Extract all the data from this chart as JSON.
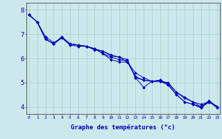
{
  "xlabel": "Graphe des températures (°c)",
  "background_color": "#cce8ec",
  "grid_color": "#aacccc",
  "line_color": "#0000bb",
  "x_ticks": [
    0,
    1,
    2,
    3,
    4,
    5,
    6,
    7,
    8,
    9,
    10,
    11,
    12,
    13,
    14,
    15,
    16,
    17,
    18,
    19,
    20,
    21,
    22,
    23
  ],
  "ylim": [
    3.7,
    8.3
  ],
  "xlim": [
    -0.3,
    23.3
  ],
  "yticks": [
    4,
    5,
    6,
    7,
    8
  ],
  "series": [
    [
      7.8,
      7.5,
      6.8,
      6.6,
      6.85,
      6.6,
      6.55,
      6.5,
      6.4,
      6.3,
      6.1,
      6.05,
      5.95,
      5.2,
      5.1,
      5.05,
      5.1,
      4.95,
      4.6,
      4.35,
      4.2,
      4.0,
      4.2,
      4.0
    ],
    [
      7.8,
      7.5,
      6.8,
      6.6,
      6.85,
      6.55,
      6.5,
      6.5,
      6.4,
      6.2,
      5.95,
      5.85,
      5.85,
      5.25,
      5.1,
      5.05,
      5.05,
      4.9,
      4.5,
      4.2,
      4.1,
      4.0,
      4.25,
      4.0
    ],
    [
      7.8,
      7.5,
      6.9,
      6.65,
      6.85,
      6.6,
      6.55,
      6.5,
      6.35,
      6.3,
      6.15,
      6.05,
      5.85,
      5.4,
      5.2,
      5.05,
      5.05,
      5.0,
      4.6,
      4.4,
      4.2,
      4.1,
      4.2,
      4.0
    ],
    [
      7.8,
      7.5,
      6.8,
      6.6,
      6.9,
      6.6,
      6.55,
      6.5,
      6.4,
      6.2,
      6.05,
      5.95,
      5.9,
      5.2,
      4.8,
      5.05,
      5.1,
      4.9,
      4.5,
      4.2,
      4.1,
      3.95,
      4.2,
      3.95
    ]
  ]
}
